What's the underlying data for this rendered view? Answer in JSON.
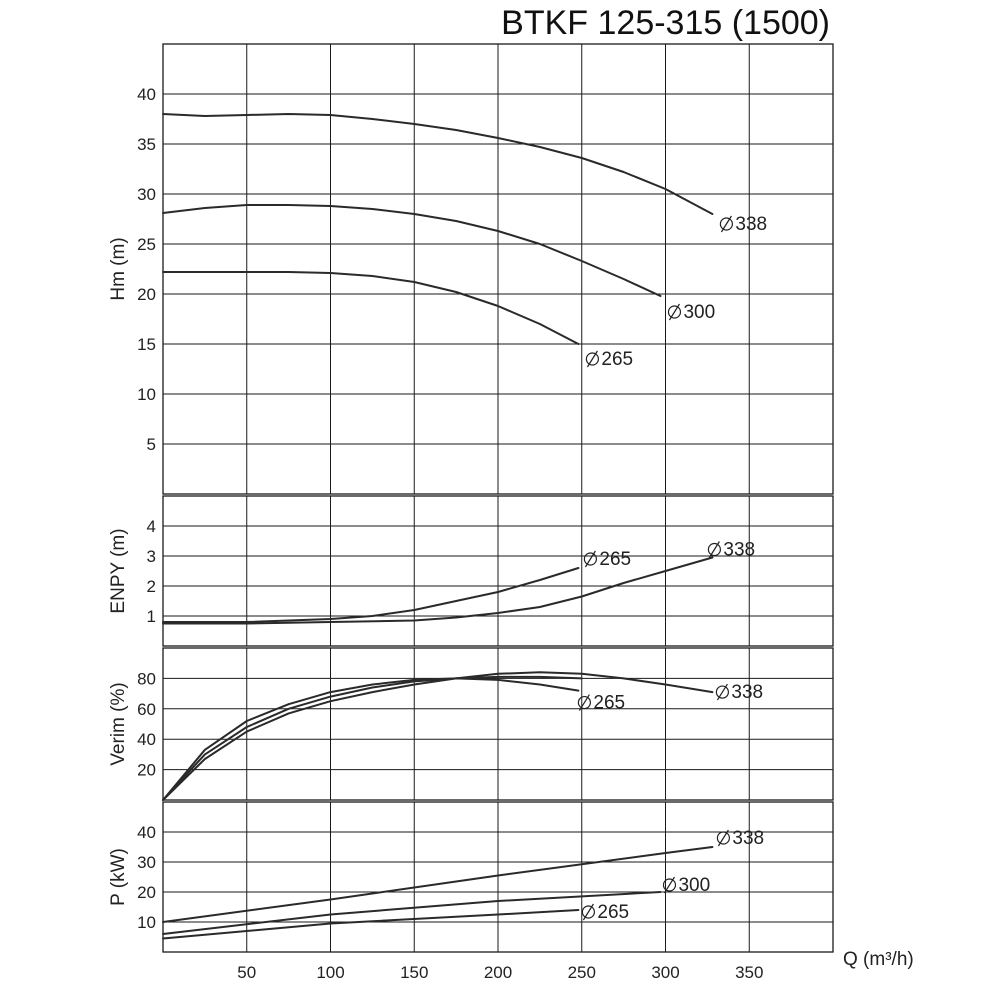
{
  "title": "BTKF 125-315 (1500)",
  "chart_data": [
    {
      "type": "line",
      "ylabel": "Hm (m)",
      "ylim": [
        0,
        45
      ],
      "yticks": [
        5,
        10,
        15,
        20,
        25,
        30,
        35,
        40
      ],
      "grid": true,
      "series": [
        {
          "name": "Ø338",
          "x": [
            0,
            25,
            50,
            75,
            100,
            125,
            150,
            175,
            200,
            225,
            250,
            275,
            300,
            328
          ],
          "y": [
            38,
            37.8,
            37.9,
            38,
            37.9,
            37.5,
            37,
            36.4,
            35.6,
            34.7,
            33.6,
            32.2,
            30.5,
            28
          ]
        },
        {
          "name": "Ø300",
          "x": [
            0,
            25,
            50,
            75,
            100,
            125,
            150,
            175,
            200,
            225,
            250,
            275,
            297
          ],
          "y": [
            28.1,
            28.6,
            28.9,
            28.9,
            28.8,
            28.5,
            28,
            27.3,
            26.3,
            25,
            23.3,
            21.5,
            19.8
          ]
        },
        {
          "name": "Ø265",
          "x": [
            0,
            25,
            50,
            75,
            100,
            125,
            150,
            175,
            200,
            225,
            248
          ],
          "y": [
            22.2,
            22.2,
            22.2,
            22.2,
            22.1,
            21.8,
            21.2,
            20.2,
            18.8,
            17,
            15
          ]
        }
      ]
    },
    {
      "type": "line",
      "ylabel": "ENPY (m)",
      "ylim": [
        0,
        5
      ],
      "yticks": [
        1,
        2,
        3,
        4
      ],
      "grid": true,
      "series": [
        {
          "name": "Ø265",
          "x": [
            0,
            50,
            100,
            125,
            150,
            175,
            200,
            225,
            248
          ],
          "y": [
            0.8,
            0.8,
            0.9,
            1,
            1.2,
            1.5,
            1.8,
            2.2,
            2.6
          ]
        },
        {
          "name": "Ø338",
          "x": [
            0,
            50,
            100,
            150,
            175,
            200,
            225,
            250,
            275,
            300,
            328
          ],
          "y": [
            0.75,
            0.75,
            0.8,
            0.85,
            0.95,
            1.1,
            1.3,
            1.65,
            2.1,
            2.5,
            2.95
          ]
        }
      ]
    },
    {
      "type": "line",
      "ylabel": "Verim (%)",
      "ylim": [
        0,
        100
      ],
      "yticks": [
        20,
        40,
        60,
        80
      ],
      "grid": true,
      "series": [
        {
          "name": "",
          "x": [
            0,
            25,
            50,
            75,
            100,
            125,
            150,
            175,
            200,
            225,
            248
          ],
          "y": [
            0,
            33,
            52,
            63,
            71,
            76,
            79,
            80,
            79,
            76,
            72
          ]
        },
        {
          "name": "",
          "x": [
            0,
            25,
            50,
            75,
            100,
            125,
            150,
            175,
            200,
            225,
            250
          ],
          "y": [
            0,
            30,
            48,
            60,
            68,
            74,
            78,
            80,
            81,
            81,
            80
          ]
        },
        {
          "name": "",
          "x": [
            0,
            25,
            50,
            75,
            100,
            125,
            150,
            175,
            200,
            225,
            250,
            275,
            300,
            328
          ],
          "y": [
            0,
            27,
            45,
            57,
            65,
            71,
            76,
            80,
            83,
            84,
            83,
            80,
            76,
            71
          ]
        }
      ],
      "labels": [
        "Ø265",
        "Ø338"
      ]
    },
    {
      "type": "line",
      "ylabel": "P (kW)",
      "ylim": [
        0,
        50
      ],
      "yticks": [
        10,
        20,
        30,
        40
      ],
      "xlabel": "Q (m³/h)",
      "xticks": [
        50,
        100,
        150,
        200,
        250,
        300,
        350
      ],
      "xlim": [
        0,
        400
      ],
      "grid": true,
      "series": [
        {
          "name": "Ø338",
          "x": [
            0,
            100,
            200,
            300,
            328
          ],
          "y": [
            10,
            17.5,
            25.5,
            33,
            35
          ]
        },
        {
          "name": "Ø300",
          "x": [
            0,
            100,
            200,
            297
          ],
          "y": [
            6,
            12.5,
            17,
            20
          ]
        },
        {
          "name": "Ø265",
          "x": [
            0,
            100,
            200,
            248
          ],
          "y": [
            4.5,
            9.5,
            12.5,
            14
          ]
        }
      ]
    }
  ]
}
